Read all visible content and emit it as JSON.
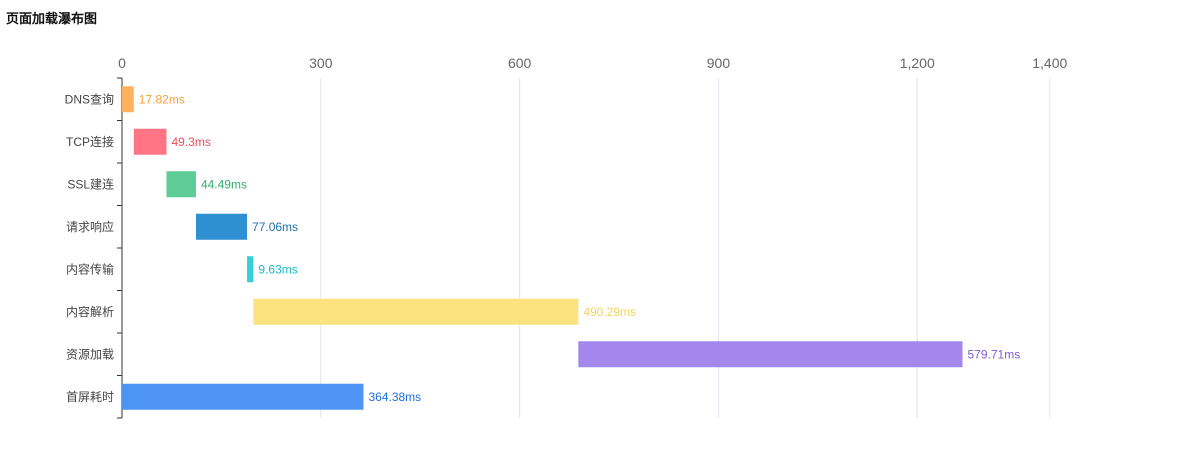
{
  "title": "页面加载瀑布图",
  "chart_data": {
    "type": "bar",
    "orientation": "horizontal",
    "stacked_waterfall": true,
    "title": "页面加载瀑布图",
    "xlim": [
      0,
      1500
    ],
    "x_ticks": [
      {
        "value": 0,
        "label": "0"
      },
      {
        "value": 300,
        "label": "300"
      },
      {
        "value": 600,
        "label": "600"
      },
      {
        "value": 900,
        "label": "900"
      },
      {
        "value": 1200,
        "label": "1,200"
      },
      {
        "value": 1400,
        "label": "1,400"
      }
    ],
    "grid": true,
    "categories": [
      "DNS查询",
      "TCP连接",
      "SSL建连",
      "请求响应",
      "内容传输",
      "内容解析",
      "资源加载",
      "首屏耗时"
    ],
    "starts": [
      0,
      17.82,
      67.12,
      111.61,
      188.67,
      198.3,
      688.59,
      0
    ],
    "values": [
      17.82,
      49.3,
      44.49,
      77.06,
      9.63,
      490.29,
      579.71,
      364.38
    ],
    "value_labels": [
      "17.82ms",
      "49.3ms",
      "44.49ms",
      "77.06ms",
      "9.63ms",
      "490.29ms",
      "579.71ms",
      "364.38ms"
    ],
    "bar_colors": [
      "#FFB25E",
      "#FF7585",
      "#5ECC97",
      "#2E8FD1",
      "#37CFD9",
      "#FCE380",
      "#A387EB",
      "#4D94F5"
    ],
    "label_colors": [
      "#F5A23D",
      "#F04B5E",
      "#2FAE6F",
      "#1F6FB0",
      "#1FB9C4",
      "#F2D35A",
      "#7F5BD9",
      "#1E6FE0"
    ]
  }
}
